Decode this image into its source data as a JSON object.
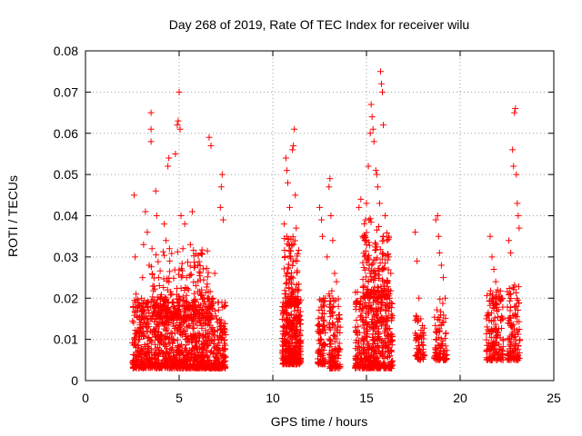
{
  "chart_data": {
    "type": "scatter",
    "title": "Day 268 of 2019, Rate Of TEC Index for receiver wilu",
    "xlabel": "GPS time / hours",
    "ylabel": "ROTI / TECUs",
    "xlim": [
      0,
      25
    ],
    "ylim": [
      0,
      0.08
    ],
    "xticks": [
      0,
      5,
      10,
      15,
      20,
      25
    ],
    "yticks": [
      0,
      0.01,
      0.02,
      0.03,
      0.04,
      0.05,
      0.06,
      0.07,
      0.08
    ],
    "grid": true,
    "marker": "+",
    "color": "#ff0000",
    "series": [
      {
        "points": [
          [
            2.6,
            0.045
          ],
          [
            2.65,
            0.03
          ],
          [
            2.7,
            0.021
          ],
          [
            2.75,
            0.012
          ],
          [
            2.8,
            0.008
          ],
          [
            2.9,
            0.01
          ],
          [
            3.0,
            0.015
          ],
          [
            3.05,
            0.025
          ],
          [
            3.1,
            0.033
          ],
          [
            3.2,
            0.041
          ],
          [
            3.3,
            0.036
          ],
          [
            3.4,
            0.028
          ],
          [
            3.5,
            0.065
          ],
          [
            3.5,
            0.061
          ],
          [
            3.5,
            0.058
          ],
          [
            3.55,
            0.032
          ],
          [
            3.6,
            0.018
          ],
          [
            3.7,
            0.012
          ],
          [
            3.75,
            0.046
          ],
          [
            3.8,
            0.04
          ],
          [
            3.9,
            0.025
          ],
          [
            4.0,
            0.02
          ],
          [
            4.1,
            0.015
          ],
          [
            4.2,
            0.038
          ],
          [
            4.3,
            0.034
          ],
          [
            4.4,
            0.052
          ],
          [
            4.45,
            0.054
          ],
          [
            4.5,
            0.029
          ],
          [
            4.6,
            0.021
          ],
          [
            4.7,
            0.018
          ],
          [
            4.8,
            0.055
          ],
          [
            4.9,
            0.062
          ],
          [
            4.95,
            0.063
          ],
          [
            5.0,
            0.07
          ],
          [
            5.05,
            0.061
          ],
          [
            5.1,
            0.04
          ],
          [
            5.2,
            0.032
          ],
          [
            5.3,
            0.038
          ],
          [
            5.4,
            0.025
          ],
          [
            5.5,
            0.022
          ],
          [
            5.6,
            0.033
          ],
          [
            5.7,
            0.041
          ],
          [
            5.8,
            0.016
          ],
          [
            5.9,
            0.023
          ],
          [
            6.0,
            0.028
          ],
          [
            6.1,
            0.016
          ],
          [
            6.2,
            0.022
          ],
          [
            6.4,
            0.014
          ],
          [
            6.6,
            0.059
          ],
          [
            6.7,
            0.057
          ],
          [
            6.8,
            0.02
          ],
          [
            6.9,
            0.026
          ],
          [
            7.0,
            0.015
          ],
          [
            7.1,
            0.019
          ],
          [
            7.2,
            0.042
          ],
          [
            7.25,
            0.047
          ],
          [
            7.3,
            0.05
          ],
          [
            7.35,
            0.039
          ],
          [
            7.4,
            0.018
          ],
          [
            10.6,
            0.038
          ],
          [
            10.7,
            0.054
          ],
          [
            10.75,
            0.051
          ],
          [
            10.8,
            0.048
          ],
          [
            10.9,
            0.042
          ],
          [
            10.95,
            0.03
          ],
          [
            11.0,
            0.025
          ],
          [
            11.05,
            0.056
          ],
          [
            11.1,
            0.057
          ],
          [
            11.15,
            0.061
          ],
          [
            11.2,
            0.045
          ],
          [
            11.25,
            0.037
          ],
          [
            11.3,
            0.029
          ],
          [
            11.4,
            0.022
          ],
          [
            12.5,
            0.042
          ],
          [
            12.6,
            0.039
          ],
          [
            12.65,
            0.035
          ],
          [
            12.7,
            0.02
          ],
          [
            12.9,
            0.03
          ],
          [
            13.0,
            0.047
          ],
          [
            13.05,
            0.049
          ],
          [
            13.1,
            0.04
          ],
          [
            13.2,
            0.034
          ],
          [
            13.3,
            0.026
          ],
          [
            13.4,
            0.024
          ],
          [
            13.5,
            0.018
          ],
          [
            14.6,
            0.042
          ],
          [
            14.7,
            0.044
          ],
          [
            14.8,
            0.035
          ],
          [
            14.9,
            0.03
          ],
          [
            14.95,
            0.039
          ],
          [
            15.0,
            0.043
          ],
          [
            15.1,
            0.052
          ],
          [
            15.2,
            0.06
          ],
          [
            15.25,
            0.067
          ],
          [
            15.3,
            0.064
          ],
          [
            15.35,
            0.061
          ],
          [
            15.4,
            0.058
          ],
          [
            15.5,
            0.051
          ],
          [
            15.55,
            0.05
          ],
          [
            15.6,
            0.047
          ],
          [
            15.7,
            0.043
          ],
          [
            15.75,
            0.075
          ],
          [
            15.8,
            0.072
          ],
          [
            15.85,
            0.07
          ],
          [
            15.9,
            0.062
          ],
          [
            16.0,
            0.04
          ],
          [
            16.1,
            0.034
          ],
          [
            16.2,
            0.03
          ],
          [
            16.3,
            0.026
          ],
          [
            17.6,
            0.036
          ],
          [
            17.7,
            0.029
          ],
          [
            17.8,
            0.02
          ],
          [
            17.9,
            0.015
          ],
          [
            18.7,
            0.039
          ],
          [
            18.8,
            0.04
          ],
          [
            18.85,
            0.035
          ],
          [
            18.9,
            0.031
          ],
          [
            19.0,
            0.028
          ],
          [
            19.1,
            0.025
          ],
          [
            19.2,
            0.02
          ],
          [
            21.6,
            0.035
          ],
          [
            21.7,
            0.03
          ],
          [
            21.8,
            0.027
          ],
          [
            21.9,
            0.024
          ],
          [
            22.0,
            0.022
          ],
          [
            22.2,
            0.02
          ],
          [
            22.6,
            0.034
          ],
          [
            22.7,
            0.031
          ],
          [
            22.8,
            0.056
          ],
          [
            22.85,
            0.052
          ],
          [
            22.9,
            0.065
          ],
          [
            22.95,
            0.066
          ],
          [
            23.0,
            0.05
          ],
          [
            23.05,
            0.043
          ],
          [
            23.1,
            0.04
          ],
          [
            23.15,
            0.037
          ]
        ],
        "dense_bands": [
          {
            "x": [
              2.5,
              7.5
            ],
            "y": [
              0.003,
              0.02
            ],
            "count": 1100
          },
          {
            "x": [
              3.5,
              6.8
            ],
            "y": [
              0.015,
              0.032
            ],
            "count": 260
          },
          {
            "x": [
              10.5,
              11.5
            ],
            "y": [
              0.004,
              0.02
            ],
            "count": 340
          },
          {
            "x": [
              10.6,
              11.4
            ],
            "y": [
              0.018,
              0.035
            ],
            "count": 90
          },
          {
            "x": [
              12.4,
              12.8
            ],
            "y": [
              0.004,
              0.02
            ],
            "count": 90
          },
          {
            "x": [
              13.0,
              13.6
            ],
            "y": [
              0.003,
              0.022
            ],
            "count": 130
          },
          {
            "x": [
              14.4,
              16.4
            ],
            "y": [
              0.003,
              0.022
            ],
            "count": 480
          },
          {
            "x": [
              14.8,
              16.2
            ],
            "y": [
              0.02,
              0.04
            ],
            "count": 150
          },
          {
            "x": [
              17.6,
              18.1
            ],
            "y": [
              0.005,
              0.016
            ],
            "count": 60
          },
          {
            "x": [
              18.6,
              19.3
            ],
            "y": [
              0.005,
              0.02
            ],
            "count": 90
          },
          {
            "x": [
              21.4,
              22.3
            ],
            "y": [
              0.005,
              0.022
            ],
            "count": 160
          },
          {
            "x": [
              22.5,
              23.2
            ],
            "y": [
              0.005,
              0.024
            ],
            "count": 120
          }
        ]
      }
    ]
  }
}
